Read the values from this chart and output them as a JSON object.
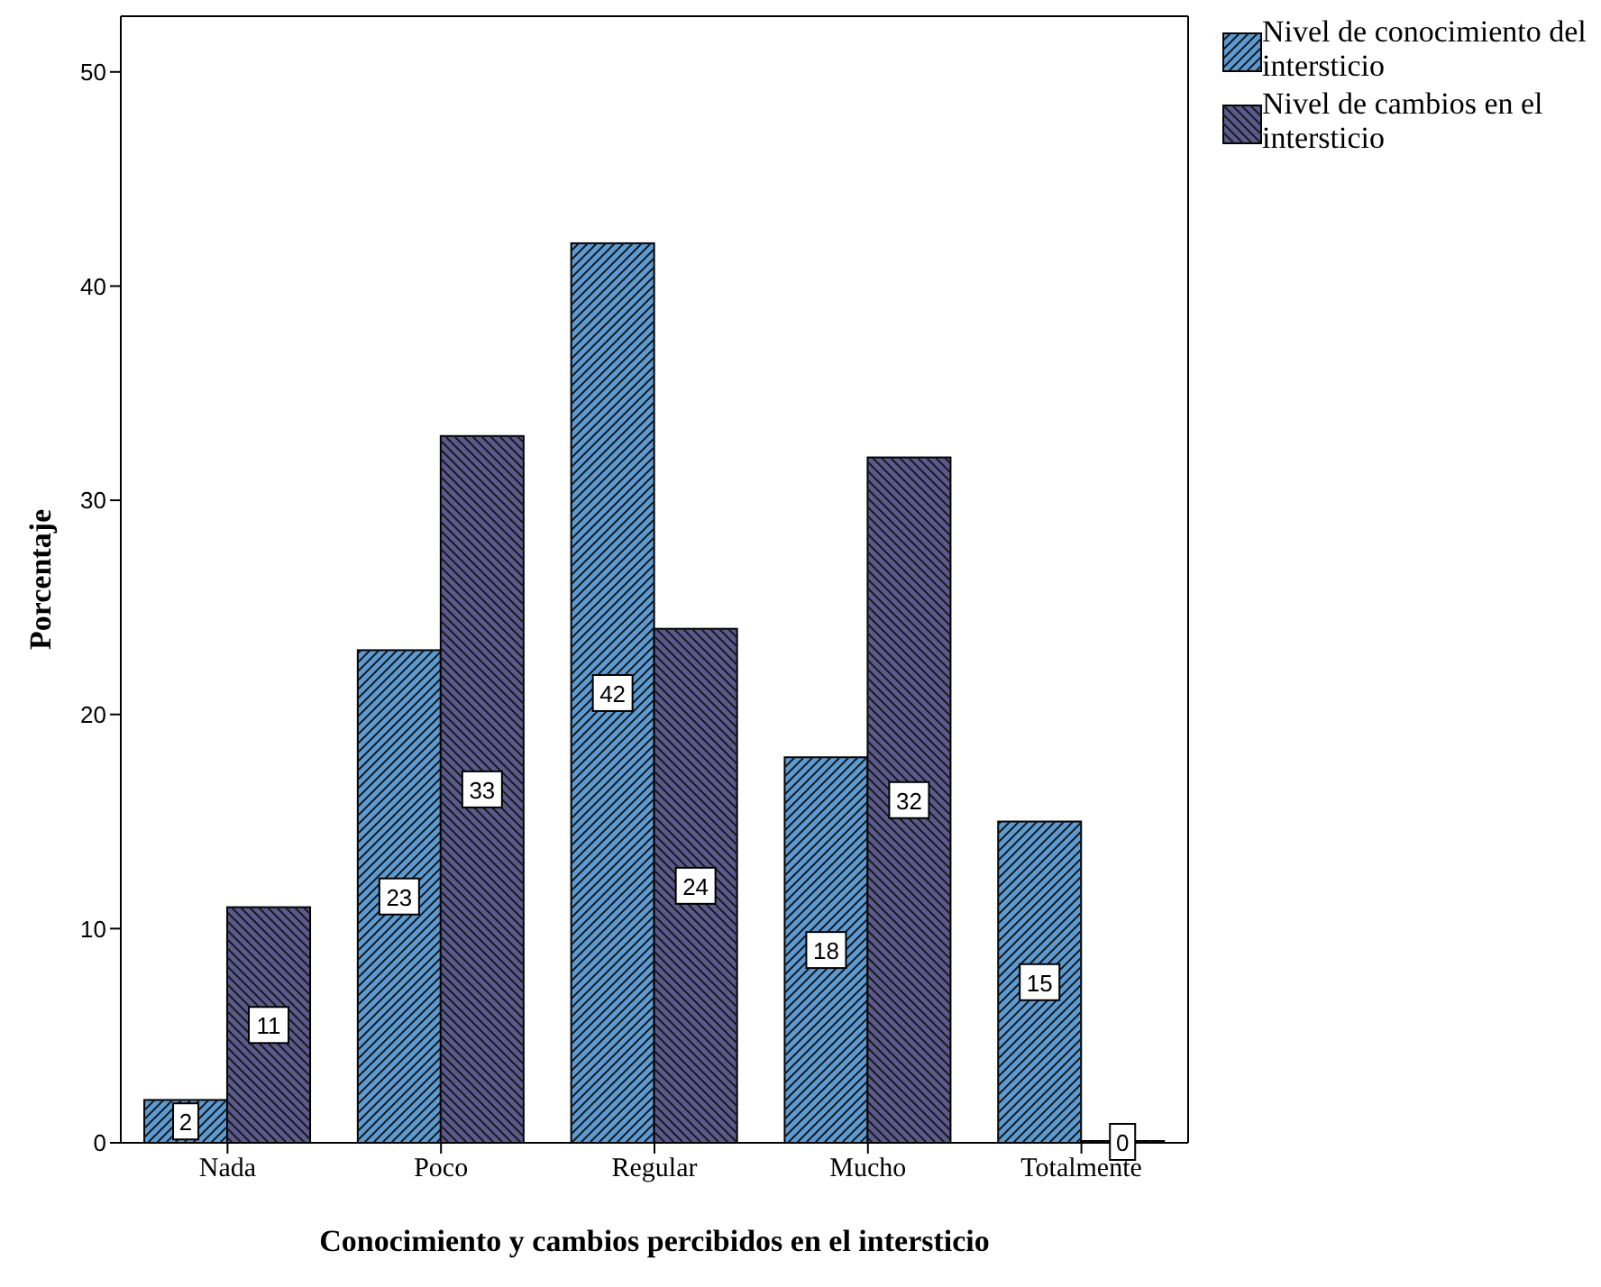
{
  "chart_data": {
    "type": "bar",
    "xlabel": "Conocimiento y cambios percibidos en el intersticio",
    "ylabel": "Porcentaje",
    "categories": [
      "Nada",
      "Poco",
      "Regular",
      "Mucho",
      "Totalmente"
    ],
    "series": [
      {
        "name": "Nivel de conocimiento del intersticio",
        "color": "#5b9bd5",
        "values": [
          2,
          23,
          42,
          18,
          15
        ]
      },
      {
        "name": "Nivel de cambios en el intersticio",
        "color": "#5a5a8e",
        "values": [
          11,
          33,
          24,
          32,
          0
        ]
      }
    ],
    "ylim": [
      0,
      52.6
    ],
    "yticks": [
      0,
      10,
      20,
      30,
      40,
      50
    ],
    "grid": false,
    "legend": "top right",
    "data_labels": true
  }
}
